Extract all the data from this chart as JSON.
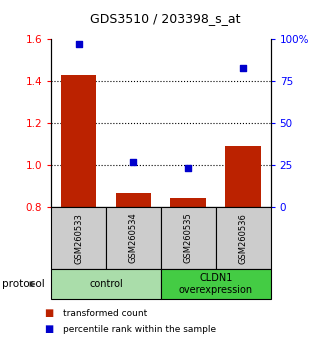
{
  "title": "GDS3510 / 203398_s_at",
  "categories": [
    "GSM260533",
    "GSM260534",
    "GSM260535",
    "GSM260536"
  ],
  "bar_values": [
    1.43,
    0.865,
    0.845,
    1.09
  ],
  "scatter_values": [
    97,
    27,
    23,
    83
  ],
  "bar_color": "#bb2200",
  "scatter_color": "#0000cc",
  "ylim_left": [
    0.8,
    1.6
  ],
  "ylim_right": [
    0,
    100
  ],
  "yticks_left": [
    0.8,
    1.0,
    1.2,
    1.4,
    1.6
  ],
  "yticks_right": [
    0,
    25,
    50,
    75,
    100
  ],
  "ytick_labels_right": [
    "0",
    "25",
    "50",
    "75",
    "100%"
  ],
  "hlines": [
    1.0,
    1.2,
    1.4
  ],
  "groups": [
    {
      "label": "control",
      "indices": [
        0,
        1
      ],
      "color": "#aaddaa"
    },
    {
      "label": "CLDN1\noverexpression",
      "indices": [
        2,
        3
      ],
      "color": "#44cc44"
    }
  ],
  "legend_items": [
    {
      "label": "transformed count",
      "color": "#bb2200"
    },
    {
      "label": "percentile rank within the sample",
      "color": "#0000cc"
    }
  ],
  "protocol_label": "protocol",
  "bar_bottom": 0.8,
  "bar_width": 0.65,
  "sample_box_color": "#cccccc",
  "bg_color": "#ffffff"
}
